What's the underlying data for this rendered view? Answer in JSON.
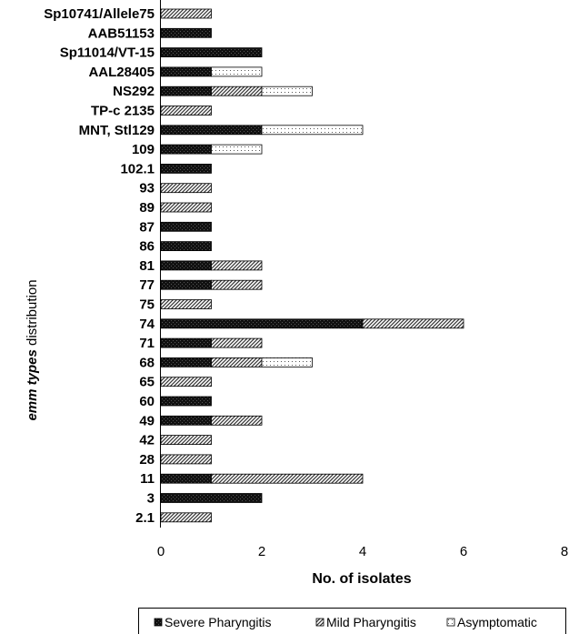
{
  "chart_data": {
    "type": "bar",
    "orientation": "horizontal",
    "stacked": true,
    "title": "",
    "xlabel": "No. of isolates",
    "ylabel": {
      "emphasis": "emm types",
      "rest": " distribution"
    },
    "xlim": [
      0,
      8
    ],
    "xticks": [
      "0",
      "2",
      "4",
      "6",
      "8"
    ],
    "grid": false,
    "legend_position": "bottom",
    "categories": [
      "2.1",
      "3",
      "11",
      "28",
      "42",
      "49",
      "60",
      "65",
      "68",
      "71",
      "74",
      "75",
      "77",
      "81",
      "86",
      "87",
      "89",
      "93",
      "102.1",
      "109",
      "MNT, Stl129",
      "TP-c 2135",
      "NS292",
      "AAL28405",
      "Sp11014/VT-15",
      "AAB51153",
      "Sp10741/Allele75"
    ],
    "series": [
      {
        "name": "Severe Pharyngitis",
        "values": [
          0,
          2,
          1,
          0,
          0,
          1,
          1,
          0,
          1,
          1,
          4,
          0,
          1,
          1,
          1,
          1,
          0,
          0,
          1,
          1,
          2,
          0,
          1,
          1,
          2,
          1,
          0
        ],
        "pattern": "dark"
      },
      {
        "name": "Mild Pharyngitis",
        "values": [
          1,
          0,
          3,
          1,
          1,
          1,
          0,
          1,
          1,
          1,
          2,
          1,
          1,
          1,
          0,
          0,
          1,
          1,
          0,
          0,
          0,
          1,
          1,
          0,
          0,
          0,
          1
        ],
        "pattern": "hatch"
      },
      {
        "name": "Asymptomatic",
        "values": [
          0,
          0,
          0,
          0,
          0,
          0,
          0,
          0,
          1,
          0,
          0,
          0,
          0,
          0,
          0,
          0,
          0,
          0,
          0,
          1,
          2,
          0,
          1,
          1,
          0,
          0,
          0
        ],
        "pattern": "dots"
      }
    ]
  }
}
